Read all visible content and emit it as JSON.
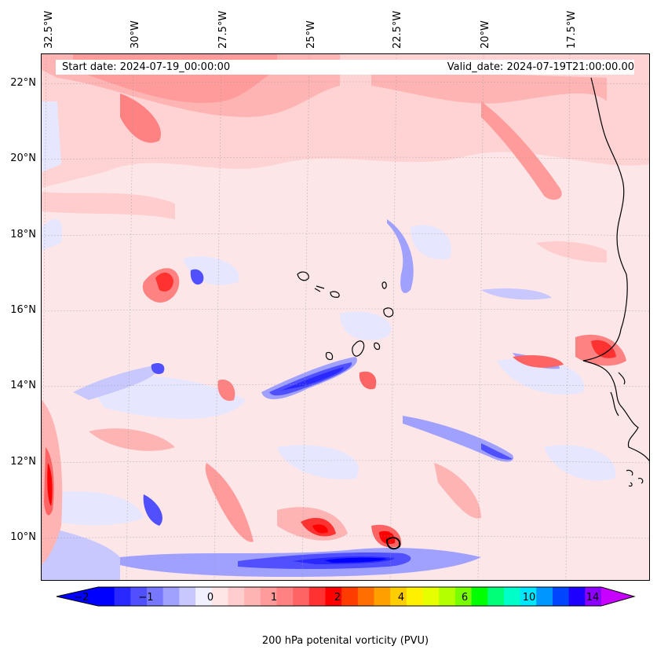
{
  "map": {
    "start_date": "Start date: 2024-07-19_00:00:00",
    "valid_date": "Valid_date: 2024-07-19T21:00:00.00",
    "longitude_labels": [
      "32.5°W",
      "30°W",
      "27.5°W",
      "25°W",
      "22.5°W",
      "20°W",
      "17.5°W"
    ],
    "latitude_labels": [
      "22°N",
      "20°N",
      "18°N",
      "16°N",
      "14°N",
      "12°N",
      "10°N"
    ],
    "variable": "200 hPa potential vorticity",
    "region": "Cabo Verde islands and West African coast (Senegal / Guinea-Bissau)",
    "features": [
      {
        "name": "negative PV band",
        "description": "blue band from about 28°W 14°N to 24°W 15°N"
      },
      {
        "name": "negative PV band",
        "description": "strong blue band near 10°N between 25°W and 22°W"
      },
      {
        "name": "positive PV maxima",
        "description": "red cores near 27°W 16.5°N and near the African coast 16.5°W 14.5°N"
      }
    ]
  },
  "colorbar": {
    "ticks": [
      "−2",
      "−1",
      "0",
      "1",
      "2",
      "4",
      "6",
      "10",
      "14"
    ],
    "label": "200 hPa potenital vorticity (PVU)",
    "colors": [
      "#0000ff",
      "#2828ff",
      "#5050ff",
      "#7878ff",
      "#a0a0ff",
      "#c8c8ff",
      "#f0f0ff",
      "#ffe6e6",
      "#ffcdcd",
      "#ffb4b4",
      "#ff9b9b",
      "#ff8282",
      "#ff6464",
      "#ff3232",
      "#ff0000",
      "#ff3c00",
      "#ff6e00",
      "#ffa000",
      "#ffcd00",
      "#fff000",
      "#e6ff00",
      "#b4ff00",
      "#78ff00",
      "#00ff00",
      "#00ff78",
      "#00ffc8",
      "#00e6ff",
      "#0096ff",
      "#0046ff",
      "#1e00ff",
      "#8c00ff"
    ],
    "extend_low_color": "#0000ff",
    "extend_high_color": "#c800ff"
  }
}
